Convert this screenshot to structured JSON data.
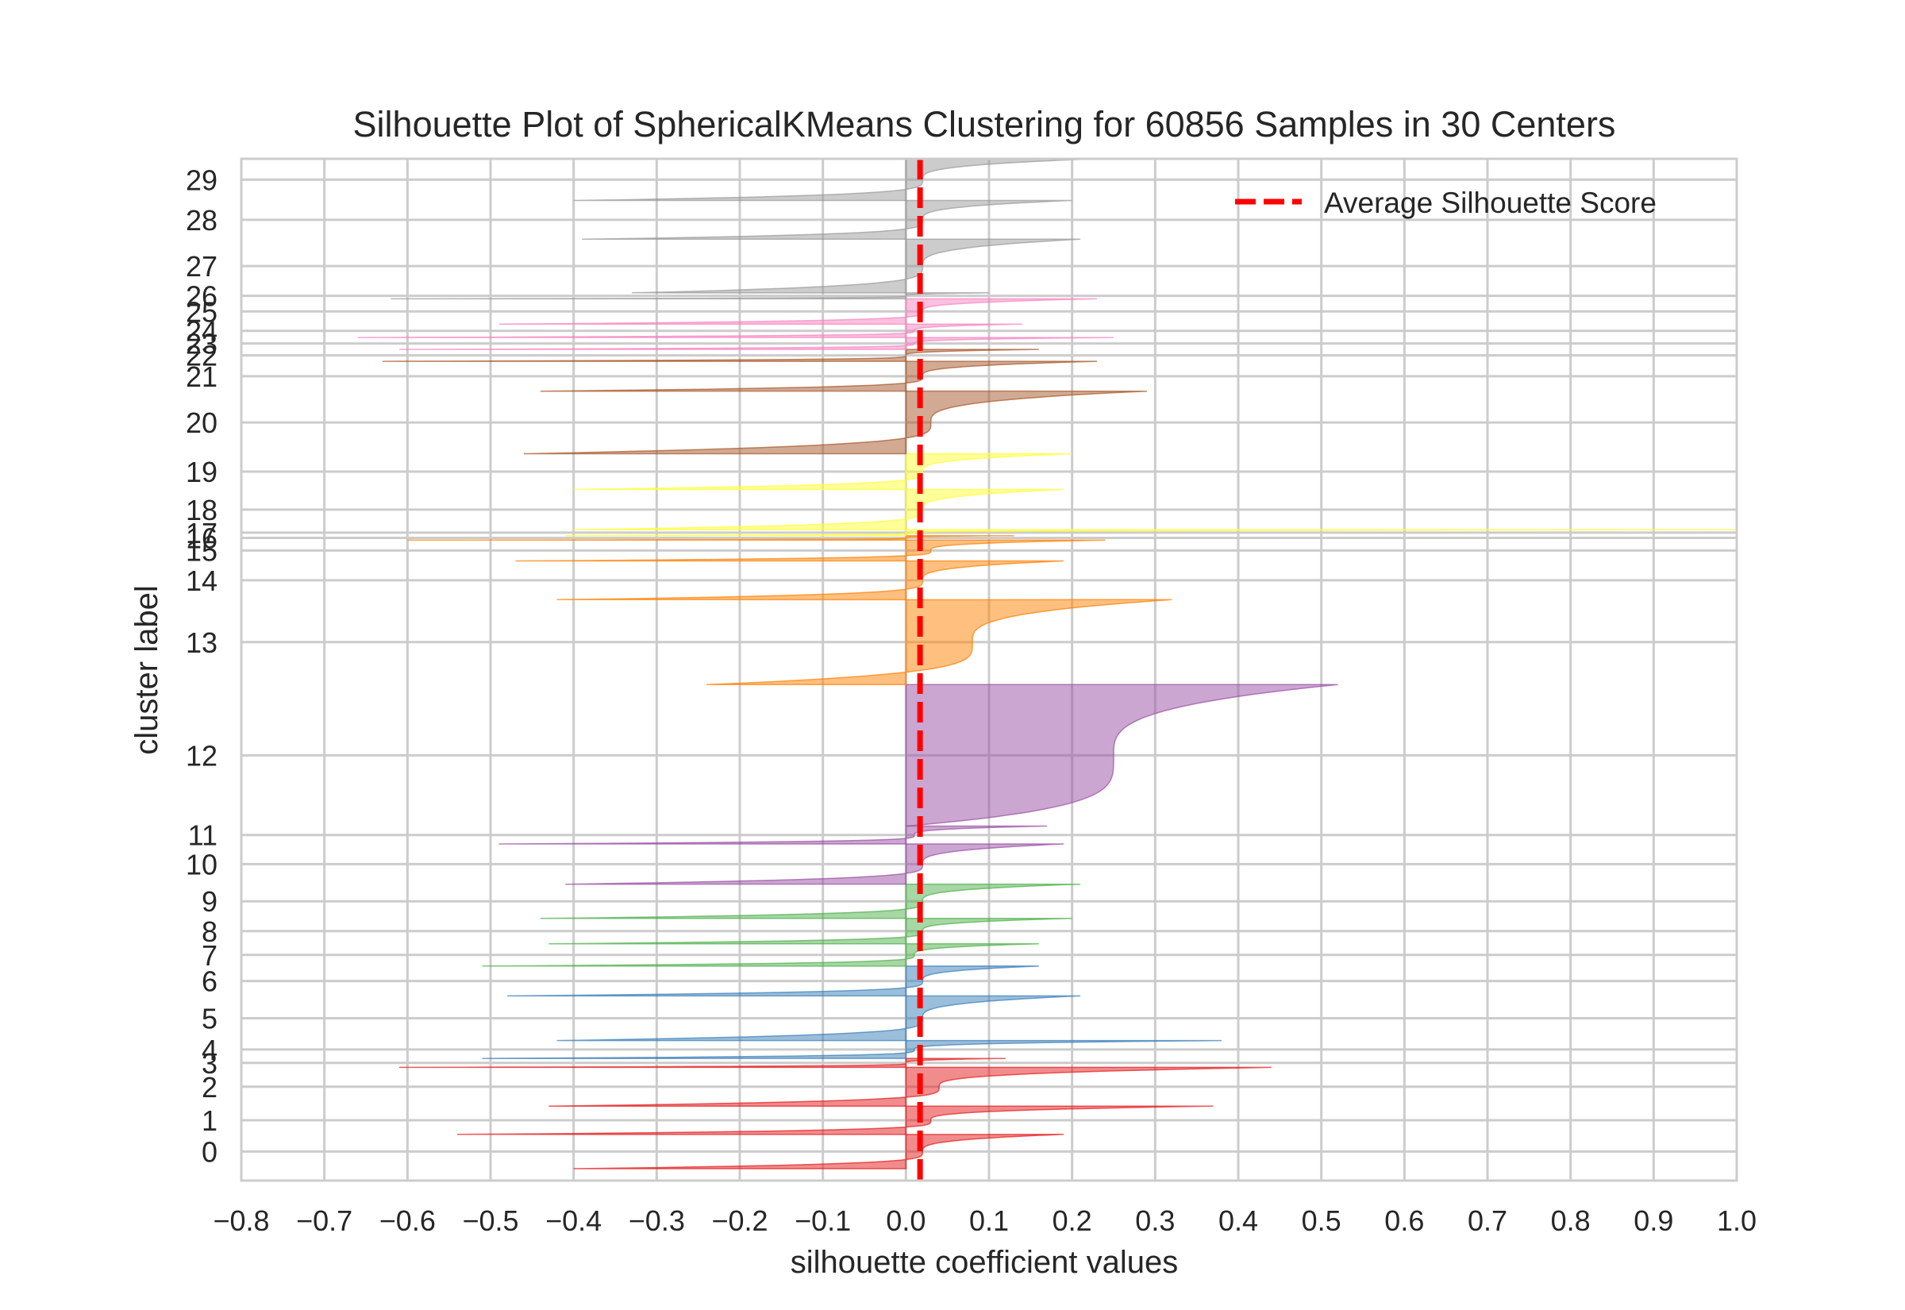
{
  "chart_data": {
    "type": "area",
    "title": "Silhouette Plot of SphericalKMeans Clustering for 60856 Samples in 30 Centers",
    "xlabel": "silhouette coefficient values",
    "ylabel": "cluster label",
    "xlim": [
      -0.8,
      1.0
    ],
    "xticks": [
      "−0.8",
      "−0.7",
      "−0.6",
      "−0.5",
      "−0.4",
      "−0.3",
      "−0.2",
      "−0.1",
      "0.0",
      "0.1",
      "0.2",
      "0.3",
      "0.4",
      "0.5",
      "0.6",
      "0.7",
      "0.8",
      "0.9",
      "1.0"
    ],
    "grid": true,
    "legend": {
      "label": "Average Silhouette Score",
      "position": "top-right"
    },
    "average_silhouette_score": 0.017,
    "average_line_color": "#ff0000",
    "clusters": [
      {
        "label": "0",
        "y_lower": 0.0,
        "y_upper": 2.3,
        "min": -0.4,
        "max": 0.19,
        "median": 0.02,
        "color": "#e41a1c"
      },
      {
        "label": "1",
        "y_lower": 2.3,
        "y_upper": 4.2,
        "min": -0.54,
        "max": 0.37,
        "median": 0.03,
        "color": "#e41a1c"
      },
      {
        "label": "2",
        "y_lower": 4.2,
        "y_upper": 6.8,
        "min": -0.43,
        "max": 0.44,
        "median": 0.04,
        "color": "#e41a1c"
      },
      {
        "label": "3",
        "y_lower": 6.8,
        "y_upper": 7.4,
        "min": -0.61,
        "max": 0.12,
        "median": 0.0,
        "color": "#e41a1c"
      },
      {
        "label": "4",
        "y_lower": 7.4,
        "y_upper": 8.6,
        "min": -0.51,
        "max": 0.38,
        "median": 0.01,
        "color": "#377eb8"
      },
      {
        "label": "5",
        "y_lower": 8.6,
        "y_upper": 11.6,
        "min": -0.42,
        "max": 0.21,
        "median": 0.02,
        "color": "#377eb8"
      },
      {
        "label": "6",
        "y_lower": 11.6,
        "y_upper": 13.6,
        "min": -0.48,
        "max": 0.16,
        "median": 0.02,
        "color": "#377eb8"
      },
      {
        "label": "7",
        "y_lower": 13.6,
        "y_upper": 15.1,
        "min": -0.51,
        "max": 0.16,
        "median": 0.01,
        "color": "#4daf4a"
      },
      {
        "label": "8",
        "y_lower": 15.1,
        "y_upper": 16.8,
        "min": -0.43,
        "max": 0.2,
        "median": 0.02,
        "color": "#4daf4a"
      },
      {
        "label": "9",
        "y_lower": 16.8,
        "y_upper": 19.1,
        "min": -0.44,
        "max": 0.21,
        "median": 0.02,
        "color": "#4daf4a"
      },
      {
        "label": "10",
        "y_lower": 19.1,
        "y_upper": 21.8,
        "min": -0.41,
        "max": 0.19,
        "median": 0.02,
        "color": "#984ea3"
      },
      {
        "label": "11",
        "y_lower": 21.8,
        "y_upper": 23.0,
        "min": -0.49,
        "max": 0.17,
        "median": 0.01,
        "color": "#984ea3"
      },
      {
        "label": "12",
        "y_lower": 23.0,
        "y_upper": 32.5,
        "min": 0.0,
        "max": 0.52,
        "median": 0.25,
        "color": "#984ea3"
      },
      {
        "label": "13",
        "y_lower": 32.5,
        "y_upper": 38.2,
        "min": -0.24,
        "max": 0.32,
        "median": 0.08,
        "color": "#ff7f00"
      },
      {
        "label": "14",
        "y_lower": 38.2,
        "y_upper": 40.8,
        "min": -0.42,
        "max": 0.19,
        "median": 0.02,
        "color": "#ff7f00"
      },
      {
        "label": "15",
        "y_lower": 40.8,
        "y_upper": 42.2,
        "min": -0.47,
        "max": 0.24,
        "median": 0.03,
        "color": "#ff7f00"
      },
      {
        "label": "16",
        "y_lower": 42.2,
        "y_upper": 42.5,
        "min": -0.6,
        "max": 0.13,
        "median": 0.0,
        "color": "#ff7f00"
      },
      {
        "label": "17",
        "y_lower": 42.5,
        "y_upper": 42.9,
        "min": -0.41,
        "max": 1.0,
        "median": 0.01,
        "color": "#ffff33"
      },
      {
        "label": "18",
        "y_lower": 42.9,
        "y_upper": 45.6,
        "min": -0.4,
        "max": 0.19,
        "median": 0.02,
        "color": "#ffff33"
      },
      {
        "label": "19",
        "y_lower": 45.6,
        "y_upper": 48.0,
        "min": -0.4,
        "max": 0.2,
        "median": 0.02,
        "color": "#ffff33"
      },
      {
        "label": "20",
        "y_lower": 48.0,
        "y_upper": 52.2,
        "min": -0.46,
        "max": 0.29,
        "median": 0.03,
        "color": "#a65628"
      },
      {
        "label": "21",
        "y_lower": 52.2,
        "y_upper": 54.2,
        "min": -0.44,
        "max": 0.23,
        "median": 0.02,
        "color": "#a65628"
      },
      {
        "label": "22",
        "y_lower": 54.2,
        "y_upper": 55.0,
        "min": -0.63,
        "max": 0.16,
        "median": 0.0,
        "color": "#a65628"
      },
      {
        "label": "23",
        "y_lower": 55.0,
        "y_upper": 55.8,
        "min": -0.61,
        "max": 0.25,
        "median": 0.01,
        "color": "#f781bf"
      },
      {
        "label": "24",
        "y_lower": 55.8,
        "y_upper": 56.7,
        "min": -0.66,
        "max": 0.14,
        "median": 0.01,
        "color": "#f781bf"
      },
      {
        "label": "25",
        "y_lower": 56.7,
        "y_upper": 58.4,
        "min": -0.49,
        "max": 0.23,
        "median": 0.02,
        "color": "#f781bf"
      },
      {
        "label": "26",
        "y_lower": 58.4,
        "y_upper": 58.8,
        "min": -0.62,
        "max": 0.1,
        "median": 0.0,
        "color": "#999999"
      },
      {
        "label": "27",
        "y_lower": 58.8,
        "y_upper": 62.4,
        "min": -0.33,
        "max": 0.21,
        "median": 0.02,
        "color": "#999999"
      },
      {
        "label": "28",
        "y_lower": 62.4,
        "y_upper": 65.0,
        "min": -0.39,
        "max": 0.2,
        "median": 0.02,
        "color": "#999999"
      },
      {
        "label": "29",
        "y_lower": 65.0,
        "y_upper": 67.8,
        "min": -0.4,
        "max": 0.23,
        "median": 0.02,
        "color": "#999999"
      }
    ]
  }
}
